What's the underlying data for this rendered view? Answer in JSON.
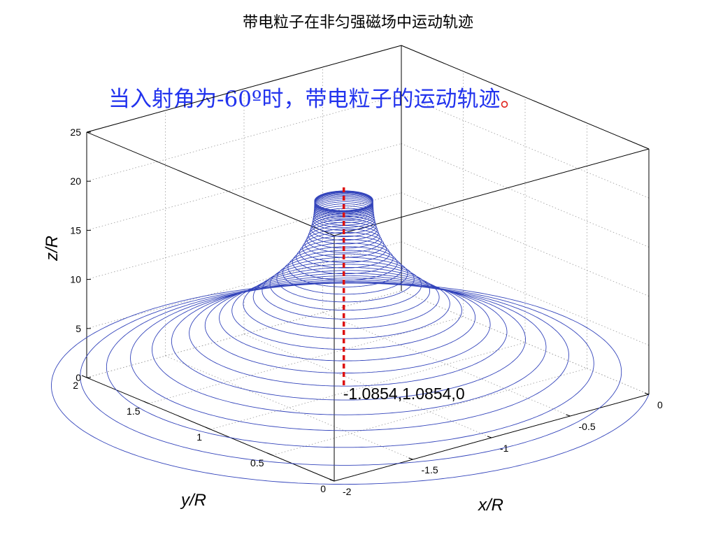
{
  "chart_data": {
    "type": "line3d",
    "title": "带电粒子在非匀强磁场中运动轨迹",
    "annotation": {
      "text": "当入射角为-60º时，带电粒子的运动轨迹",
      "trailing": "。",
      "color": "#2233ee",
      "trailing_color": "#e0221b"
    },
    "axes": {
      "x": {
        "label": "x/R",
        "lim": [
          -2,
          0
        ],
        "ticks": [
          -2,
          -1.5,
          -1,
          -0.5,
          0
        ],
        "tick_labels": [
          "-2",
          "-1.5",
          "-1",
          "-0.5",
          "0"
        ]
      },
      "y": {
        "label": "y/R",
        "lim": [
          0,
          2
        ],
        "ticks": [
          0,
          0.5,
          1,
          1.5,
          2
        ],
        "tick_labels": [
          "0",
          "0.5",
          "1",
          "1.5",
          "2"
        ]
      },
      "z": {
        "label": "z/R",
        "lim": [
          0,
          25
        ],
        "ticks": [
          0,
          5,
          10,
          15,
          20,
          25
        ],
        "tick_labels": [
          "0",
          "5",
          "10",
          "15",
          "20",
          "25"
        ]
      }
    },
    "grid": true,
    "box": true,
    "series": [
      {
        "kind": "helix-trajectory",
        "color": "#3344bb",
        "start": [
          0,
          0,
          0
        ],
        "axis": [
          -1.0854,
          1.0854
        ],
        "radius_at_base": 1.5349,
        "z_top": 18.8
      },
      {
        "kind": "axis-line",
        "color": "#dd1111",
        "style": "dashed",
        "point": [
          -1.0854,
          1.0854
        ],
        "z_range": [
          0,
          20.5
        ]
      }
    ],
    "point_label": {
      "text": "-1.0854,1.0854,0",
      "at": [
        -1.0854,
        1.0854,
        0
      ]
    }
  }
}
